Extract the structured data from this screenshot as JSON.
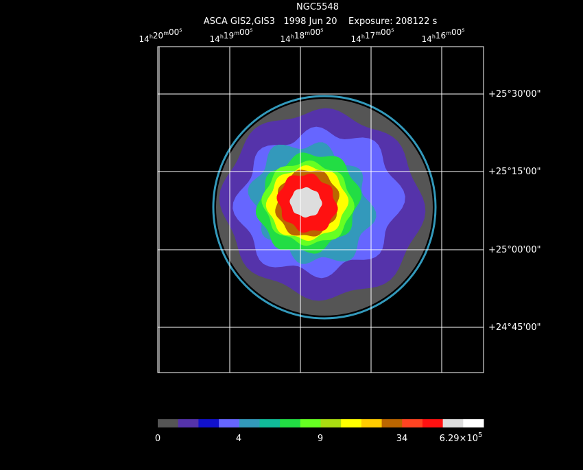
{
  "header": {
    "title": "NGC5548",
    "subtitle": "ASCA GIS2,GIS3   1998 Jun 20    Exposure: 208122 s"
  },
  "ra_units": [
    "h",
    "m",
    "s"
  ],
  "ra_labels": [
    {
      "hours": "14",
      "minutes": "20",
      "seconds": "00"
    },
    {
      "hours": "14",
      "minutes": "19",
      "seconds": "00"
    },
    {
      "hours": "14",
      "minutes": "18",
      "seconds": "00"
    },
    {
      "hours": "14",
      "minutes": "17",
      "seconds": "00"
    },
    {
      "hours": "14",
      "minutes": "16",
      "seconds": "00"
    }
  ],
  "dec_labels": [
    "+25°30'00\"",
    "+25°15'00\"",
    "+25°00'00\"",
    "+24°45'00\""
  ],
  "colorbar": {
    "colors": [
      "#555555",
      "#5533aa",
      "#1111cc",
      "#6666ff",
      "#3399bb",
      "#11bb99",
      "#22dd44",
      "#66ff22",
      "#aadd11",
      "#ffff00",
      "#ffcc00",
      "#bb6600",
      "#ff4422",
      "#ff1111",
      "#dddddd",
      "#ffffff"
    ],
    "labels": [
      "0",
      "4",
      "9",
      "34"
    ],
    "max_label": {
      "mantissa": "6.29×10",
      "exponent": "5"
    }
  }
}
